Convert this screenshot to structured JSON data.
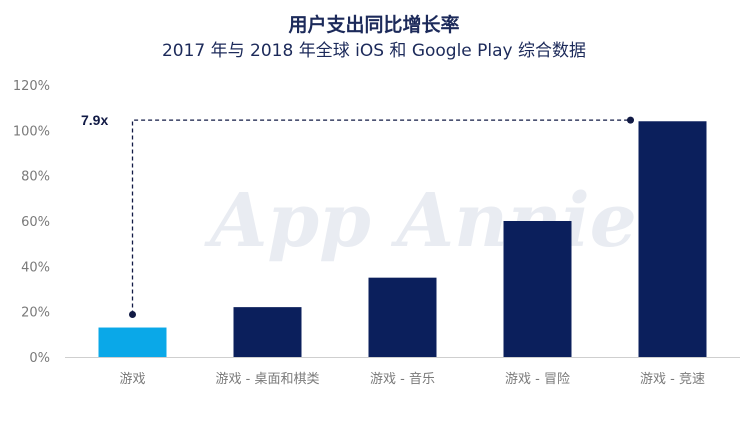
{
  "title": "用户支出同比增长率",
  "subtitle": "2017 年与 2018 年全球 iOS 和 Google Play 综合数据",
  "watermark": "App Annie",
  "chart_data": {
    "type": "bar",
    "categories": [
      "游戏",
      "游戏 - 桌面和棋类",
      "游戏 - 音乐",
      "游戏 - 冒险",
      "游戏 - 竞速"
    ],
    "values": [
      13,
      22,
      35,
      60,
      104
    ],
    "bar_colors": [
      "#0aa8e8",
      "#0b1f5c",
      "#0b1f5c",
      "#0b1f5c",
      "#0b1f5c"
    ],
    "ylim": [
      0,
      120
    ],
    "yticks": [
      0,
      20,
      40,
      60,
      80,
      100,
      120
    ],
    "ytick_labels": [
      "0%",
      "20%",
      "40%",
      "60%",
      "80%",
      "100%",
      "120%"
    ],
    "grid": false,
    "annotation": {
      "text": "7.9x",
      "from_category": "游戏",
      "to_category": "游戏 - 竞速",
      "level": 104.5
    }
  }
}
